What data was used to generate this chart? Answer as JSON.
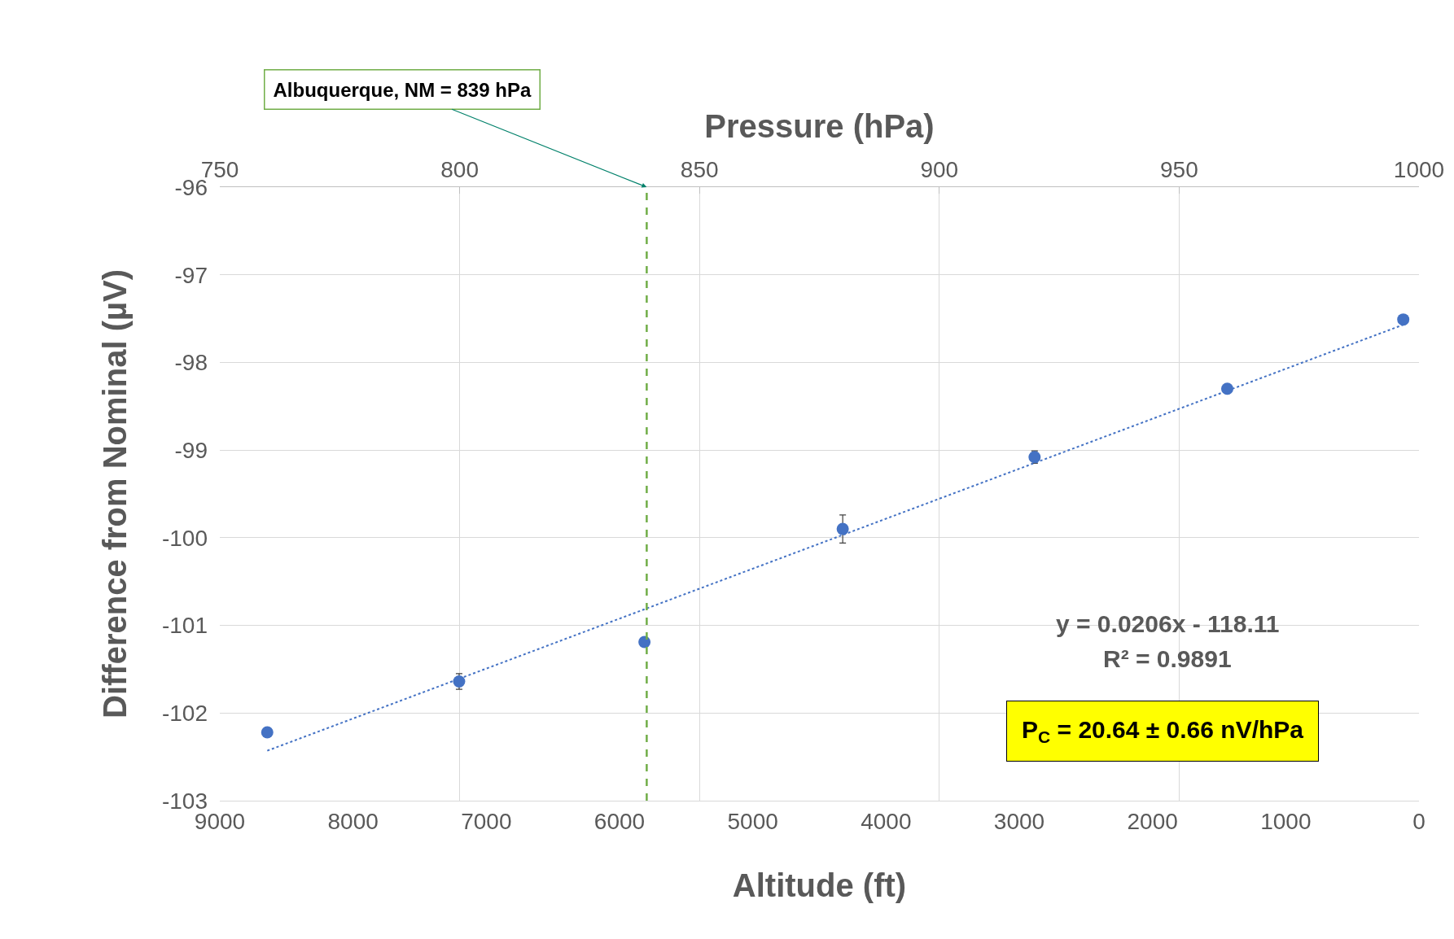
{
  "chart_data": {
    "type": "scatter",
    "xlabel": "Altitude (ft)",
    "x2label": "Pressure (hPa)",
    "ylabel": "Difference from Nominal (µV)",
    "x": [
      8644,
      7204,
      5813,
      4325,
      2885,
      1439,
      118
    ],
    "series": [
      {
        "color": "#4472c4",
        "values": [
          -102.22,
          -101.64,
          -101.19,
          -99.9,
          -99.08,
          -98.3,
          -97.51
        ],
        "errors": [
          null,
          0.09,
          null,
          0.16,
          0.07,
          null,
          null
        ],
        "marker": "circle"
      },
      {
        "type": "line",
        "color": "#4472c4",
        "x": [
          8644,
          118
        ],
        "values": [
          -102.43,
          -97.57
        ],
        "line_style": "dotted",
        "marker": "none"
      }
    ],
    "xlim": [
      9000,
      0
    ],
    "xticks": [
      9000,
      8000,
      7000,
      6000,
      5000,
      4000,
      3000,
      2000,
      1000,
      0
    ],
    "x2lim": [
      750,
      1000
    ],
    "x2ticks": [
      750,
      800,
      850,
      900,
      950,
      1000
    ],
    "ylim": [
      -103,
      -96
    ],
    "yticks": [
      -103,
      -102,
      -101,
      -100,
      -99,
      -98,
      -97,
      -96
    ],
    "ref_lines": [
      {
        "axis": "x2",
        "value": 839,
        "label": "Albuquerque, NM = 839 hPa",
        "color": "#70ad47",
        "line_style": "dashed"
      }
    ],
    "annotations": [
      "y = 0.0206x - 118.11",
      "R² = 0.9891",
      "P$_{C}$ = 20.64 ± 0.66 nV/hPa"
    ],
    "grid": true
  }
}
